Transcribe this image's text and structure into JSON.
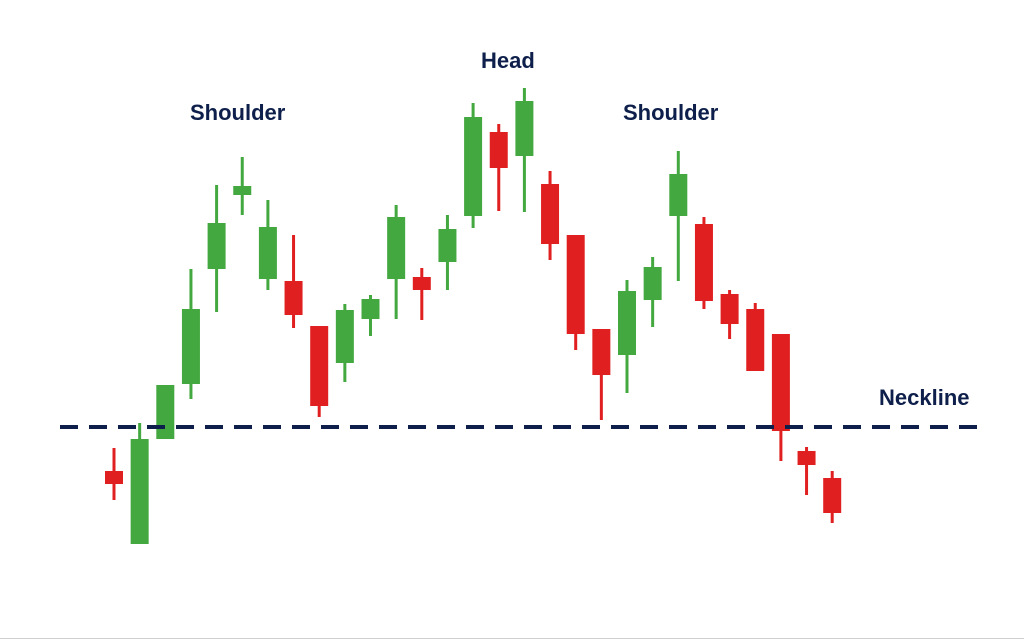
{
  "chart_data": {
    "type": "candlestick",
    "title": "",
    "xlabel": "",
    "ylabel": "",
    "grid": false,
    "ylim": [
      0,
      641
    ],
    "colors": {
      "up": "#43a83f",
      "down": "#e02020",
      "neckline": "#0d1f4a",
      "text": "#0d1f4a"
    },
    "annotations": {
      "head": "Head",
      "left_shoulder": "Shoulder",
      "right_shoulder": "Shoulder",
      "neckline": "Neckline"
    },
    "neckline_value": 214,
    "candles": [
      {
        "open": 170,
        "close": 157,
        "high": 193,
        "low": 141
      },
      {
        "open": 97,
        "close": 202,
        "high": 218,
        "low": 97
      },
      {
        "open": 202,
        "close": 256,
        "high": 256,
        "low": 202
      },
      {
        "open": 257,
        "close": 332,
        "high": 372,
        "low": 242
      },
      {
        "open": 372,
        "close": 418,
        "high": 456,
        "low": 329
      },
      {
        "open": 446,
        "close": 455,
        "high": 484,
        "low": 426
      },
      {
        "open": 362,
        "close": 414,
        "high": 441,
        "low": 351
      },
      {
        "open": 360,
        "close": 326,
        "high": 406,
        "low": 313
      },
      {
        "open": 315,
        "close": 235,
        "high": 315,
        "low": 224
      },
      {
        "open": 278,
        "close": 331,
        "high": 337,
        "low": 259
      },
      {
        "open": 322,
        "close": 342,
        "high": 346,
        "low": 305
      },
      {
        "open": 362,
        "close": 424,
        "high": 436,
        "low": 322
      },
      {
        "open": 364,
        "close": 351,
        "high": 373,
        "low": 321
      },
      {
        "open": 379,
        "close": 412,
        "high": 426,
        "low": 351
      },
      {
        "open": 425,
        "close": 524,
        "high": 538,
        "low": 413
      },
      {
        "open": 509,
        "close": 473,
        "high": 517,
        "low": 430
      },
      {
        "open": 485,
        "close": 540,
        "high": 553,
        "low": 429
      },
      {
        "open": 457,
        "close": 397,
        "high": 470,
        "low": 381
      },
      {
        "open": 406,
        "close": 307,
        "high": 406,
        "low": 291
      },
      {
        "open": 312,
        "close": 266,
        "high": 312,
        "low": 221
      },
      {
        "open": 286,
        "close": 350,
        "high": 361,
        "low": 248
      },
      {
        "open": 341,
        "close": 374,
        "high": 384,
        "low": 314
      },
      {
        "open": 425,
        "close": 467,
        "high": 490,
        "low": 360
      },
      {
        "open": 417,
        "close": 340,
        "high": 424,
        "low": 332
      },
      {
        "open": 347,
        "close": 317,
        "high": 351,
        "low": 302
      },
      {
        "open": 332,
        "close": 270,
        "high": 338,
        "low": 270
      },
      {
        "open": 307,
        "close": 210,
        "high": 307,
        "low": 180
      },
      {
        "open": 190,
        "close": 176,
        "high": 194,
        "low": 146
      },
      {
        "open": 163,
        "close": 128,
        "high": 170,
        "low": 118
      }
    ]
  }
}
